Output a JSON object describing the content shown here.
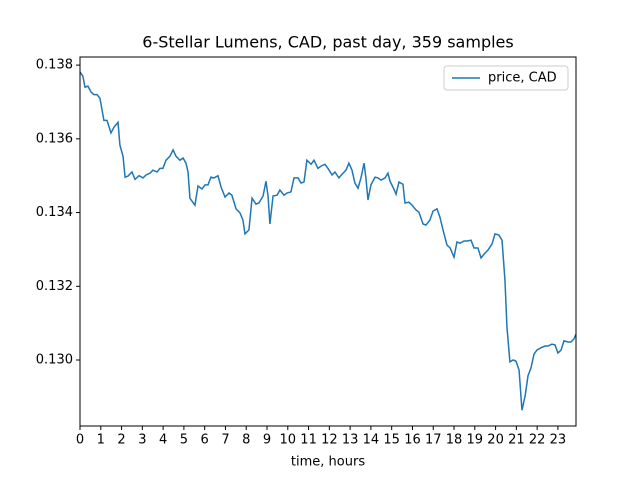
{
  "chart_data": {
    "type": "line",
    "title": "6-Stellar Lumens, CAD, past day, 359 samples",
    "x_label": "time, hours",
    "series": [
      {
        "name": "price, CAD",
        "color": "#1f77b4",
        "x": [
          0,
          0.14,
          0.24,
          0.38,
          0.53,
          0.67,
          0.82,
          0.96,
          1.15,
          1.3,
          1.49,
          1.64,
          1.83,
          1.92,
          2.07,
          2.17,
          2.31,
          2.5,
          2.65,
          2.84,
          3.03,
          3.18,
          3.37,
          3.51,
          3.71,
          3.85,
          3.99,
          4.14,
          4.33,
          4.48,
          4.62,
          4.81,
          4.96,
          5.1,
          5.2,
          5.29,
          5.53,
          5.68,
          5.87,
          6.02,
          6.16,
          6.3,
          6.45,
          6.64,
          6.79,
          6.98,
          7.17,
          7.31,
          7.51,
          7.7,
          7.84,
          7.94,
          8.13,
          8.28,
          8.47,
          8.61,
          8.81,
          8.95,
          9.05,
          9.14,
          9.29,
          9.48,
          9.62,
          9.82,
          9.96,
          10.15,
          10.3,
          10.49,
          10.64,
          10.78,
          10.92,
          11.12,
          11.26,
          11.45,
          11.6,
          11.79,
          11.93,
          12.13,
          12.27,
          12.46,
          12.61,
          12.8,
          12.94,
          13.09,
          13.23,
          13.38,
          13.52,
          13.67,
          13.76,
          13.86,
          14.0,
          14.2,
          14.34,
          14.49,
          14.68,
          14.82,
          14.92,
          15.06,
          15.21,
          15.35,
          15.54,
          15.64,
          15.83,
          15.98,
          16.17,
          16.31,
          16.51,
          16.65,
          16.84,
          16.99,
          17.18,
          17.32,
          17.47,
          17.66,
          17.81,
          18.0,
          18.14,
          18.29,
          18.48,
          18.62,
          18.82,
          18.96,
          19.15,
          19.3,
          19.49,
          19.63,
          19.83,
          19.97,
          20.16,
          20.31,
          20.45,
          20.55,
          20.69,
          20.84,
          20.98,
          21.13,
          21.27,
          21.42,
          21.56,
          21.7,
          21.85,
          21.99,
          22.18,
          22.38,
          22.52,
          22.71,
          22.86,
          23.0,
          23.15,
          23.29,
          23.48,
          23.63,
          23.77,
          23.87
        ],
        "values": [
          0.13781,
          0.1377,
          0.1374,
          0.13743,
          0.13727,
          0.1372,
          0.1372,
          0.1371,
          0.1365,
          0.1365,
          0.13616,
          0.13632,
          0.13645,
          0.13583,
          0.13553,
          0.13496,
          0.13499,
          0.1351,
          0.1349,
          0.135,
          0.13494,
          0.13502,
          0.13507,
          0.13515,
          0.1351,
          0.1352,
          0.1352,
          0.13542,
          0.13553,
          0.1357,
          0.13553,
          0.13542,
          0.13548,
          0.13534,
          0.1351,
          0.13439,
          0.1342,
          0.13472,
          0.13464,
          0.13475,
          0.13475,
          0.13496,
          0.13494,
          0.135,
          0.13469,
          0.13442,
          0.13453,
          0.13447,
          0.1341,
          0.13399,
          0.1338,
          0.13342,
          0.13353,
          0.13439,
          0.13423,
          0.13426,
          0.13445,
          0.13485,
          0.13445,
          0.13369,
          0.13445,
          0.13447,
          0.13461,
          0.13447,
          0.13453,
          0.13456,
          0.13494,
          0.13494,
          0.1348,
          0.13483,
          0.13542,
          0.13531,
          0.13542,
          0.1352,
          0.13526,
          0.13531,
          0.1352,
          0.13502,
          0.1351,
          0.13494,
          0.13504,
          0.13515,
          0.13534,
          0.13515,
          0.1348,
          0.13466,
          0.13494,
          0.13534,
          0.13494,
          0.13434,
          0.13475,
          0.13496,
          0.13494,
          0.13488,
          0.13494,
          0.13507,
          0.13485,
          0.13469,
          0.1345,
          0.13483,
          0.13477,
          0.13426,
          0.13428,
          0.1342,
          0.13407,
          0.13401,
          0.13369,
          0.13366,
          0.1338,
          0.13404,
          0.1341,
          0.13388,
          0.13353,
          0.13312,
          0.13304,
          0.13279,
          0.1332,
          0.13317,
          0.13323,
          0.13323,
          0.13325,
          0.13304,
          0.13304,
          0.13277,
          0.1329,
          0.13298,
          0.13315,
          0.13342,
          0.13339,
          0.13325,
          0.13217,
          0.13087,
          0.12995,
          0.13,
          0.12997,
          0.12973,
          0.12864,
          0.12902,
          0.12957,
          0.12978,
          0.13016,
          0.13027,
          0.13033,
          0.13038,
          0.13038,
          0.13043,
          0.13041,
          0.13019,
          0.13027,
          0.13052,
          0.13049,
          0.13049,
          0.13057,
          0.1307
        ]
      }
    ],
    "xlim": [
      0,
      23.87
    ],
    "ylim": [
      0.12821,
      0.13822
    ],
    "xticks": [
      0,
      1,
      2,
      3,
      4,
      5,
      6,
      7,
      8,
      9,
      10,
      11,
      12,
      13,
      14,
      15,
      16,
      17,
      18,
      19,
      20,
      21,
      22,
      23
    ],
    "yticks": [
      {
        "value": 0.13,
        "label": "0.130"
      },
      0.132,
      0.134,
      0.136,
      0.138
    ],
    "grid": false,
    "legend": "upper right"
  }
}
